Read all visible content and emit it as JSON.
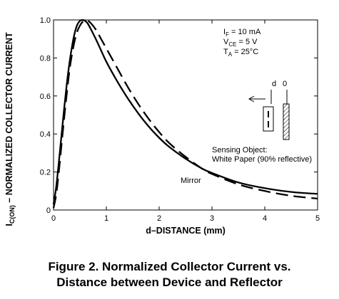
{
  "chart_data": {
    "type": "line",
    "title": "",
    "xlabel": "d–DISTANCE (mm)",
    "ylabel_parts": {
      "lead": "I",
      "sub": "C(ON)",
      "rest": " – NORMALIZED COLLECTOR CURRENT"
    },
    "xlim": [
      0,
      5
    ],
    "ylim": [
      0,
      1.0
    ],
    "x_ticks": [
      0,
      1,
      2,
      3,
      4,
      5
    ],
    "y_ticks": [
      0,
      0.2,
      0.4,
      0.6,
      0.8,
      1.0
    ],
    "x_tick_labels": [
      "0",
      "1",
      "2",
      "3",
      "4",
      "5"
    ],
    "y_tick_labels": [
      "0",
      "0.2",
      "0.4",
      "0.6",
      "0.8",
      "1.0"
    ],
    "grid": false,
    "series": [
      {
        "name": "Sensing Object: White Paper (90% reflective)",
        "style": "solid",
        "x": [
          0,
          0.05,
          0.1,
          0.15,
          0.2,
          0.25,
          0.3,
          0.35,
          0.4,
          0.45,
          0.5,
          0.55,
          0.6,
          0.65,
          0.7,
          0.8,
          0.9,
          1.0,
          1.2,
          1.4,
          1.6,
          1.8,
          2.0,
          2.2,
          2.5,
          2.8,
          3.0,
          3.5,
          4.0,
          4.5,
          5.0
        ],
        "y": [
          0.03,
          0.12,
          0.25,
          0.39,
          0.53,
          0.66,
          0.77,
          0.86,
          0.93,
          0.975,
          0.995,
          1.0,
          0.995,
          0.98,
          0.955,
          0.9,
          0.84,
          0.78,
          0.68,
          0.59,
          0.51,
          0.44,
          0.38,
          0.33,
          0.27,
          0.22,
          0.195,
          0.145,
          0.115,
          0.095,
          0.085
        ]
      },
      {
        "name": "Mirror",
        "style": "dashed",
        "x": [
          0,
          0.05,
          0.1,
          0.15,
          0.2,
          0.25,
          0.3,
          0.35,
          0.4,
          0.45,
          0.5,
          0.55,
          0.6,
          0.65,
          0.7,
          0.8,
          0.9,
          1.0,
          1.2,
          1.4,
          1.6,
          1.8,
          2.0,
          2.2,
          2.5,
          2.8,
          3.0,
          3.5,
          4.0,
          4.5,
          5.0
        ],
        "y": [
          0.01,
          0.08,
          0.2,
          0.34,
          0.48,
          0.61,
          0.73,
          0.82,
          0.89,
          0.94,
          0.97,
          0.99,
          1.0,
          0.995,
          0.985,
          0.95,
          0.9,
          0.85,
          0.75,
          0.65,
          0.56,
          0.48,
          0.41,
          0.35,
          0.28,
          0.22,
          0.19,
          0.135,
          0.1,
          0.075,
          0.06
        ]
      }
    ],
    "annotations": {
      "conditions": [
        {
          "lead": "I",
          "sub": "F",
          "rest": " = 10 mA"
        },
        {
          "lead": "V",
          "sub": "CE",
          "rest": " = 5 V"
        },
        {
          "lead": "T",
          "sub": "A",
          "rest": " = 25°C"
        }
      ],
      "inset_labels": {
        "d": "d",
        "zero": "0"
      },
      "sensing_line1": "Sensing Object:",
      "sensing_line2": "White Paper (90% reflective)",
      "mirror_label": "Mirror"
    }
  },
  "caption": {
    "line1": "Figure 2. Normalized Collector Current vs.",
    "line2": "Distance between Device and Reflector"
  }
}
